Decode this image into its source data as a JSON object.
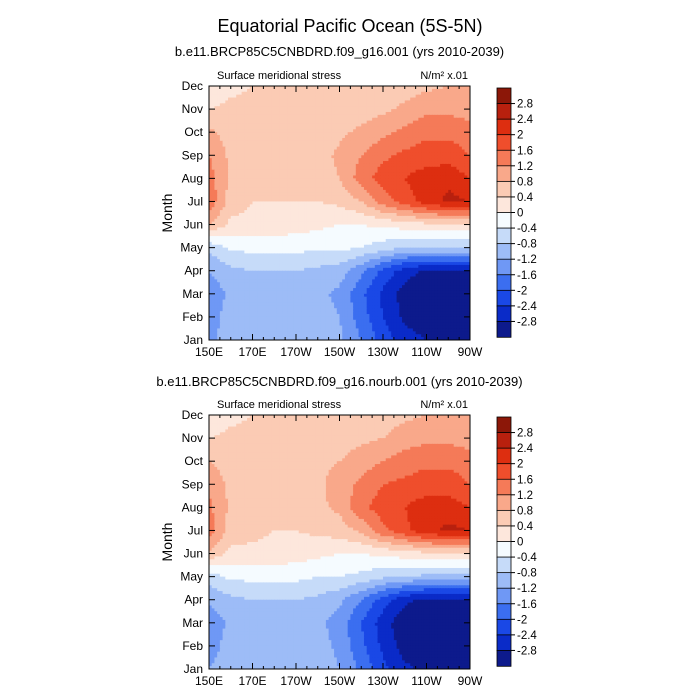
{
  "title": "Equatorial Pacific Ocean (5S-5N)",
  "colors": {
    "levels": [
      "#0d1a8c",
      "#0a2bc8",
      "#1a48e6",
      "#3b6ef0",
      "#6f98f5",
      "#9dbcf7",
      "#c6dbf9",
      "#f5fbff",
      "#fde7dc",
      "#fbcbb4",
      "#f9a88a",
      "#f57a58",
      "#ef4e2c",
      "#dd2e10",
      "#b8200e",
      "#8c1708"
    ]
  },
  "chart_data": [
    {
      "type": "contour",
      "title": "b.e11.BRCP85C5CNBDRD.f09_g16.001 (yrs 2010-2039)",
      "left_label": "Surface meridional stress",
      "units_label": "N/m² x.01",
      "ylabel": "Month",
      "xlabel": "",
      "x_ticks": [
        "150E",
        "170E",
        "170W",
        "150W",
        "130W",
        "110W",
        "90W"
      ],
      "x_tick_values": [
        150,
        170,
        190,
        210,
        230,
        250,
        270
      ],
      "xlim": [
        150,
        270
      ],
      "y_ticks": [
        "Jan",
        "Feb",
        "Mar",
        "Apr",
        "May",
        "Jun",
        "Jul",
        "Aug",
        "Sep",
        "Oct",
        "Nov",
        "Dec"
      ],
      "ylim": [
        1,
        12
      ],
      "levels": [
        -2.8,
        -2.4,
        -2,
        -1.6,
        -1.2,
        -0.8,
        -0.4,
        0,
        0.4,
        0.8,
        1.2,
        1.6,
        2,
        2.4,
        2.8
      ],
      "colorbar_labels": [
        "2.8",
        "2.4",
        "2",
        "1.6",
        "1.2",
        "0.8",
        "0.4",
        "0",
        "-0.4",
        "-0.8",
        "-1.2",
        "-1.6",
        "-2",
        "-2.4",
        "-2.8"
      ],
      "x": [
        150,
        160,
        170,
        180,
        190,
        200,
        210,
        220,
        230,
        240,
        250,
        260,
        270
      ],
      "y": [
        1,
        2,
        3,
        4,
        5,
        6,
        7,
        8,
        9,
        10,
        11,
        12
      ],
      "z": [
        [
          -1.3,
          -1.0,
          -1.0,
          -1.0,
          -1.0,
          -1.0,
          -1.1,
          -1.6,
          -2.2,
          -2.6,
          -2.8,
          -2.8,
          -2.8
        ],
        [
          -1.4,
          -1.0,
          -1.0,
          -0.9,
          -0.9,
          -1.0,
          -1.2,
          -1.8,
          -2.4,
          -2.9,
          -3.1,
          -3.1,
          -3.1
        ],
        [
          -1.5,
          -1.1,
          -1.0,
          -1.0,
          -1.0,
          -1.1,
          -1.3,
          -1.9,
          -2.5,
          -3.0,
          -3.2,
          -3.2,
          -3.2
        ],
        [
          -1.2,
          -0.9,
          -0.8,
          -0.8,
          -0.8,
          -0.9,
          -1.0,
          -1.5,
          -2.1,
          -2.6,
          -2.9,
          -2.9,
          -2.9
        ],
        [
          -0.7,
          -0.3,
          -0.3,
          -0.3,
          -0.3,
          -0.3,
          -0.3,
          -0.4,
          -0.6,
          -0.8,
          -0.8,
          -0.8,
          -0.8
        ],
        [
          0.8,
          0.3,
          0.3,
          0.3,
          0.2,
          0.1,
          0.0,
          0.0,
          0.1,
          0.2,
          0.3,
          0.3,
          0.3
        ],
        [
          1.5,
          0.6,
          0.4,
          0.4,
          0.4,
          0.4,
          0.5,
          0.8,
          1.4,
          1.8,
          2.2,
          2.5,
          2.4
        ],
        [
          1.4,
          0.7,
          0.6,
          0.6,
          0.5,
          0.6,
          0.8,
          1.4,
          1.8,
          2.0,
          2.2,
          2.3,
          2.0
        ],
        [
          1.2,
          0.7,
          0.6,
          0.6,
          0.5,
          0.6,
          0.9,
          1.2,
          1.5,
          1.7,
          1.8,
          1.8,
          1.6
        ],
        [
          0.9,
          0.6,
          0.6,
          0.6,
          0.6,
          0.6,
          0.7,
          0.9,
          1.1,
          1.3,
          1.5,
          1.5,
          1.4
        ],
        [
          0.4,
          0.5,
          0.5,
          0.5,
          0.5,
          0.5,
          0.5,
          0.6,
          0.7,
          0.9,
          1.1,
          1.1,
          1.0
        ],
        [
          0.0,
          0.3,
          0.4,
          0.4,
          0.4,
          0.4,
          0.5,
          0.5,
          0.6,
          0.6,
          0.7,
          0.8,
          0.8
        ]
      ]
    },
    {
      "type": "contour",
      "title": "b.e11.BRCP85C5CNBDRD.f09_g16.nourb.001 (yrs 2010-2039)",
      "left_label": "Surface meridional stress",
      "units_label": "N/m² x.01",
      "ylabel": "Month",
      "xlabel": "",
      "x_ticks": [
        "150E",
        "170E",
        "170W",
        "150W",
        "130W",
        "110W",
        "90W"
      ],
      "x_tick_values": [
        150,
        170,
        190,
        210,
        230,
        250,
        270
      ],
      "xlim": [
        150,
        270
      ],
      "y_ticks": [
        "Jan",
        "Feb",
        "Mar",
        "Apr",
        "May",
        "Jun",
        "Jul",
        "Aug",
        "Sep",
        "Oct",
        "Nov",
        "Dec"
      ],
      "ylim": [
        1,
        12
      ],
      "levels": [
        -2.8,
        -2.4,
        -2,
        -1.6,
        -1.2,
        -0.8,
        -0.4,
        0,
        0.4,
        0.8,
        1.2,
        1.6,
        2,
        2.4,
        2.8
      ],
      "colorbar_labels": [
        "2.8",
        "2.4",
        "2",
        "1.6",
        "1.2",
        "0.8",
        "0.4",
        "0",
        "-0.4",
        "-0.8",
        "-1.2",
        "-1.6",
        "-2",
        "-2.4",
        "-2.8"
      ],
      "x": [
        150,
        160,
        170,
        180,
        190,
        200,
        210,
        220,
        230,
        240,
        250,
        260,
        270
      ],
      "y": [
        1,
        2,
        3,
        4,
        5,
        6,
        7,
        8,
        9,
        10,
        11,
        12
      ],
      "z": [
        [
          -1.2,
          -1.0,
          -1.0,
          -1.0,
          -1.0,
          -1.0,
          -1.2,
          -1.7,
          -2.3,
          -2.7,
          -2.9,
          -2.9,
          -2.9
        ],
        [
          -1.4,
          -1.0,
          -1.0,
          -0.9,
          -0.9,
          -1.0,
          -1.3,
          -1.9,
          -2.5,
          -3.0,
          -3.1,
          -3.1,
          -3.1
        ],
        [
          -1.5,
          -1.1,
          -1.0,
          -1.0,
          -1.0,
          -1.1,
          -1.4,
          -2.0,
          -2.6,
          -3.1,
          -3.2,
          -3.2,
          -3.2
        ],
        [
          -1.1,
          -0.9,
          -0.8,
          -0.8,
          -0.8,
          -0.9,
          -1.1,
          -1.6,
          -2.2,
          -2.7,
          -2.9,
          -2.9,
          -2.9
        ],
        [
          -0.6,
          -0.3,
          -0.3,
          -0.3,
          -0.3,
          -0.4,
          -0.4,
          -0.5,
          -0.7,
          -0.8,
          -0.9,
          -0.9,
          -0.9
        ],
        [
          0.7,
          0.3,
          0.3,
          0.3,
          0.2,
          0.1,
          0.0,
          0.0,
          0.1,
          0.2,
          0.3,
          0.3,
          0.3
        ],
        [
          1.4,
          0.6,
          0.5,
          0.4,
          0.4,
          0.5,
          0.6,
          0.9,
          1.5,
          1.9,
          2.3,
          2.5,
          2.4
        ],
        [
          1.3,
          0.7,
          0.6,
          0.6,
          0.6,
          0.7,
          0.9,
          1.5,
          1.8,
          2.0,
          2.2,
          2.2,
          2.0
        ],
        [
          1.1,
          0.7,
          0.6,
          0.6,
          0.6,
          0.7,
          1.0,
          1.3,
          1.6,
          1.7,
          1.8,
          1.8,
          1.6
        ],
        [
          0.8,
          0.6,
          0.6,
          0.6,
          0.6,
          0.7,
          0.8,
          1.0,
          1.2,
          1.4,
          1.5,
          1.5,
          1.4
        ],
        [
          0.4,
          0.5,
          0.5,
          0.5,
          0.5,
          0.5,
          0.6,
          0.7,
          0.8,
          1.0,
          1.1,
          1.1,
          1.0
        ],
        [
          0.0,
          0.3,
          0.4,
          0.4,
          0.4,
          0.5,
          0.5,
          0.6,
          0.6,
          0.7,
          0.8,
          0.8,
          0.8
        ]
      ]
    }
  ]
}
